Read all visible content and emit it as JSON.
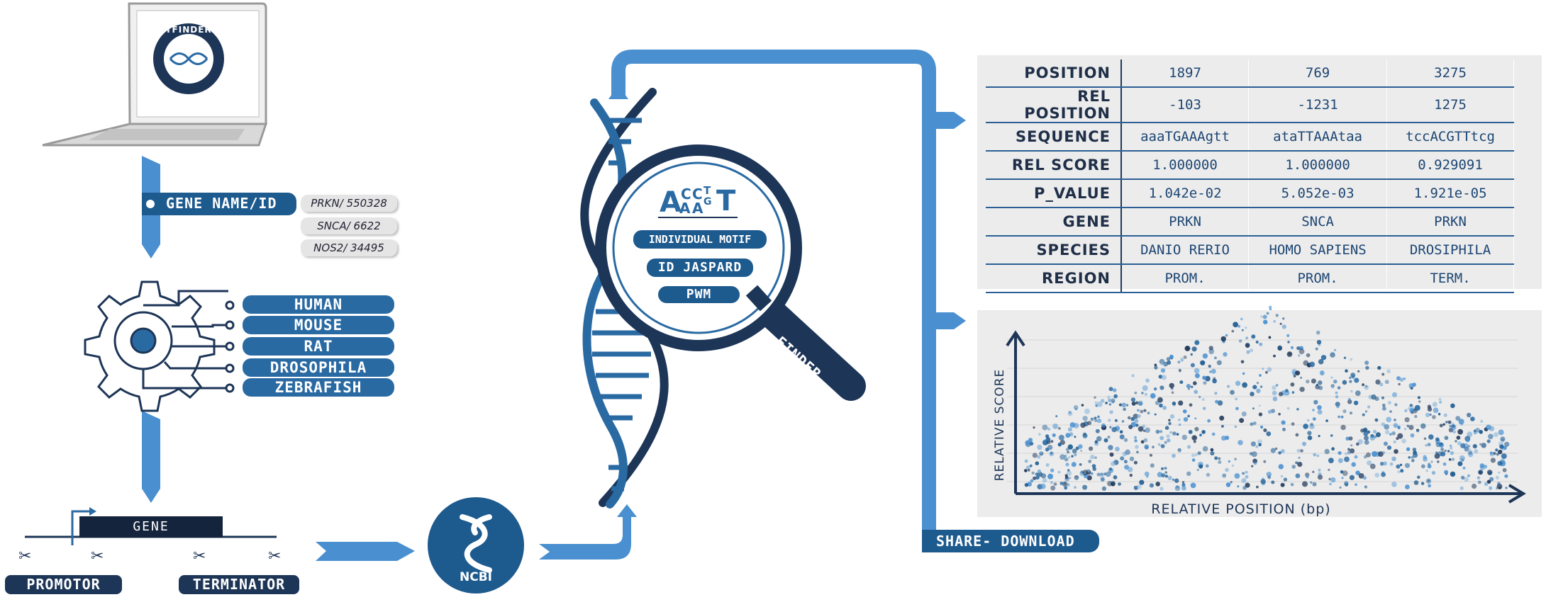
{
  "colors": {
    "navy": "#1d3557",
    "mid_blue": "#2a6aa3",
    "light_blue": "#4a90d0",
    "grey_panel": "#ececec"
  },
  "laptop": {
    "logo_text": "TFINDER",
    "icon": "laptop-icon"
  },
  "input": {
    "label": "GENE NAME/ID",
    "examples": [
      "PRKN/ 550328",
      "SNCA/ 6622",
      "NOS2/ 34495"
    ]
  },
  "species": [
    "HUMAN",
    "MOUSE",
    "RAT",
    "DROSOPHILA",
    "ZEBRAFISH"
  ],
  "gene_diagram": {
    "gene_label": "GENE",
    "promotor": "PROMOTOR",
    "terminator": "TERMINATOR"
  },
  "ncbi": {
    "label": "NCBI"
  },
  "motif": {
    "logo_letters": "AACCAGTT",
    "options": [
      "INDIVIDUAL MOTIF",
      "ID JASPARD",
      "PWM"
    ],
    "handle_label": "FINDER"
  },
  "results_table": {
    "headers": [
      "POSITION",
      "REL POSITION",
      "SEQUENCE",
      "REL SCORE",
      "P_VALUE",
      "GENE",
      "SPECIES",
      "REGION"
    ],
    "rows": [
      [
        "1897",
        "-103",
        "aaaTGAAAgtt",
        "1.000000",
        "1.042e-02",
        "PRKN",
        "DANIO RERIO",
        "PROM."
      ],
      [
        "769",
        "-1231",
        "ataTTAAAtaa",
        "1.000000",
        "5.052e-03",
        "SNCA",
        "HOMO SAPIENS",
        "PROM."
      ],
      [
        "3275",
        "1275",
        "tccACGTTtcg",
        "0.929091",
        "1.921e-05",
        "PRKN",
        "DROSIPHILA",
        "TERM."
      ]
    ]
  },
  "chart_data": {
    "type": "scatter",
    "xlabel": "RELATIVE POSITION (bp)",
    "ylabel": "RELATIVE SCORE",
    "title": "",
    "grid": true
  },
  "share": {
    "label": "SHARE- DOWNLOAD"
  }
}
